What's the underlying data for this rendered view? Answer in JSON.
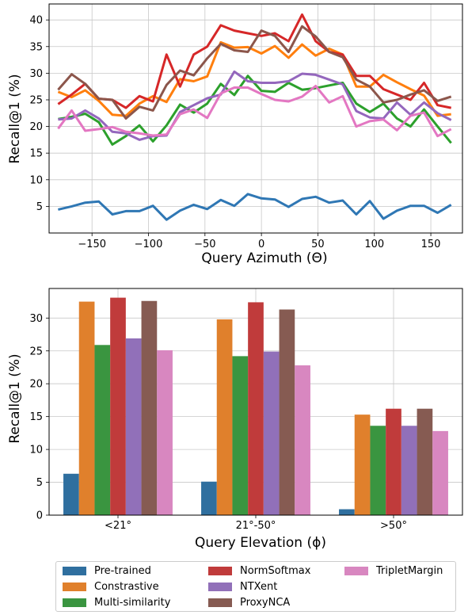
{
  "colors": {
    "Pre-trained": "#2f77b4",
    "Constrastive": "#ff7f0e",
    "Multi-similarity": "#2ca02c",
    "NormSoftmax": "#d62728",
    "NTXent": "#9467bd",
    "ProxyNCA": "#8c564b",
    "TripletMargin": "#e377c2"
  },
  "bar_colors": {
    "Pre-trained": "#2f6f9f",
    "Constrastive": "#e0802c",
    "Multi-similarity": "#3a9540",
    "NormSoftmax": "#c03b3b",
    "NTXent": "#9170b9",
    "ProxyNCA": "#865b52",
    "TripletMargin": "#d887c0"
  },
  "legend": {
    "entries": [
      "Pre-trained",
      "Constrastive",
      "Multi-similarity",
      "NormSoftmax",
      "NTXent",
      "ProxyNCA",
      "TripletMargin"
    ]
  },
  "chart_data": [
    {
      "type": "line",
      "xlabel": "Query Azimuth (Θ)",
      "ylabel": "Recall@1 (%)",
      "xlim": [
        -188,
        178
      ],
      "ylim": [
        0,
        43
      ],
      "xticks": [
        -150,
        -100,
        -50,
        0,
        50,
        100,
        150
      ],
      "xtick_labels": [
        "−150",
        "−100",
        "−50",
        "0",
        "50",
        "100",
        "150"
      ],
      "yticks": [
        5,
        10,
        15,
        20,
        25,
        30,
        35,
        40
      ],
      "grid": true,
      "x": [
        -180,
        -168,
        -156,
        -144,
        -132,
        -120,
        -108,
        -96,
        -84,
        -72,
        -60,
        -48,
        -36,
        -24,
        -12,
        0,
        12,
        24,
        36,
        48,
        60,
        72,
        84,
        96,
        108,
        120,
        132,
        144,
        156,
        168
      ],
      "series": [
        {
          "name": "Pre-trained",
          "values": [
            4.4,
            5.0,
            5.7,
            5.9,
            3.5,
            4.1,
            4.1,
            5.1,
            2.5,
            4.2,
            5.3,
            4.5,
            6.2,
            5.1,
            7.3,
            6.5,
            6.3,
            4.9,
            6.4,
            6.8,
            5.7,
            6.1,
            3.5,
            6.0,
            2.7,
            4.2,
            5.1,
            5.1,
            3.8,
            5.3
          ]
        },
        {
          "name": "Constrastive",
          "values": [
            26.5,
            25.5,
            26.8,
            24.8,
            22.2,
            22.0,
            24.3,
            25.7,
            24.6,
            28.9,
            28.5,
            29.4,
            35.8,
            34.8,
            34.9,
            33.7,
            35.1,
            32.9,
            35.4,
            33.3,
            34.6,
            33.5,
            27.5,
            27.5,
            29.7,
            28.3,
            27.0,
            25.8,
            22.0,
            22.3
          ]
        },
        {
          "name": "Multi-similarity",
          "values": [
            21.4,
            21.8,
            22.4,
            20.8,
            16.6,
            18.2,
            20.2,
            17.2,
            20.2,
            24.1,
            22.6,
            24.3,
            28.0,
            25.9,
            29.5,
            26.7,
            26.5,
            28.2,
            26.9,
            27.2,
            27.7,
            28.2,
            24.3,
            22.7,
            24.3,
            21.5,
            20.0,
            23.2,
            20.0,
            16.9
          ]
        },
        {
          "name": "NormSoftmax",
          "values": [
            24.2,
            26.0,
            28.0,
            25.2,
            25.0,
            23.5,
            25.7,
            24.7,
            33.5,
            27.5,
            33.5,
            35.0,
            39.0,
            38.0,
            37.5,
            37.0,
            37.5,
            36.0,
            41.0,
            36.0,
            34.0,
            33.5,
            29.5,
            29.5,
            27.0,
            26.0,
            25.0,
            28.2,
            24.0,
            23.5
          ]
        },
        {
          "name": "NTXent",
          "values": [
            21.3,
            21.5,
            23.0,
            21.5,
            19.0,
            18.7,
            17.5,
            18.2,
            18.3,
            22.7,
            24.0,
            25.3,
            26.0,
            30.3,
            28.5,
            28.2,
            28.2,
            28.5,
            29.9,
            29.7,
            28.8,
            27.9,
            22.9,
            21.7,
            21.5,
            24.5,
            22.2,
            24.5,
            22.5,
            21.2
          ]
        },
        {
          "name": "ProxyNCA",
          "values": [
            26.9,
            29.8,
            28.0,
            25.2,
            25.0,
            21.5,
            23.7,
            23.0,
            27.8,
            30.5,
            29.6,
            32.8,
            35.5,
            34.3,
            34.0,
            38.0,
            37.0,
            34.0,
            38.8,
            36.9,
            34.0,
            33.0,
            28.8,
            27.5,
            24.5,
            25.0,
            26.0,
            26.8,
            24.8,
            25.6
          ]
        },
        {
          "name": "TripletMargin",
          "values": [
            19.6,
            23.0,
            19.2,
            19.5,
            19.9,
            19.0,
            18.7,
            18.3,
            18.5,
            22.3,
            23.2,
            21.6,
            26.2,
            27.3,
            27.3,
            26.1,
            25.0,
            24.7,
            25.6,
            27.6,
            24.5,
            25.7,
            20.0,
            21.0,
            21.3,
            19.3,
            22.0,
            22.6,
            18.2,
            19.5
          ]
        }
      ]
    },
    {
      "type": "bar",
      "xlabel": "Query Elevation (ϕ)",
      "ylabel": "Recall@1 (%)",
      "categories": [
        "<21°",
        "21°-50°",
        ">50°"
      ],
      "ylim": [
        0,
        34.5
      ],
      "yticks": [
        0,
        5,
        10,
        15,
        20,
        25,
        30
      ],
      "grid": true,
      "series": [
        {
          "name": "Pre-trained",
          "values": [
            6.3,
            5.1,
            0.9
          ]
        },
        {
          "name": "Constrastive",
          "values": [
            32.5,
            29.8,
            15.3
          ]
        },
        {
          "name": "Multi-similarity",
          "values": [
            25.9,
            24.2,
            13.6
          ]
        },
        {
          "name": "NormSoftmax",
          "values": [
            33.1,
            32.4,
            16.2
          ]
        },
        {
          "name": "NTXent",
          "values": [
            26.9,
            24.9,
            13.6
          ]
        },
        {
          "name": "ProxyNCA",
          "values": [
            32.6,
            31.3,
            16.2
          ]
        },
        {
          "name": "TripletMargin",
          "values": [
            25.1,
            22.8,
            12.8
          ]
        }
      ]
    }
  ]
}
